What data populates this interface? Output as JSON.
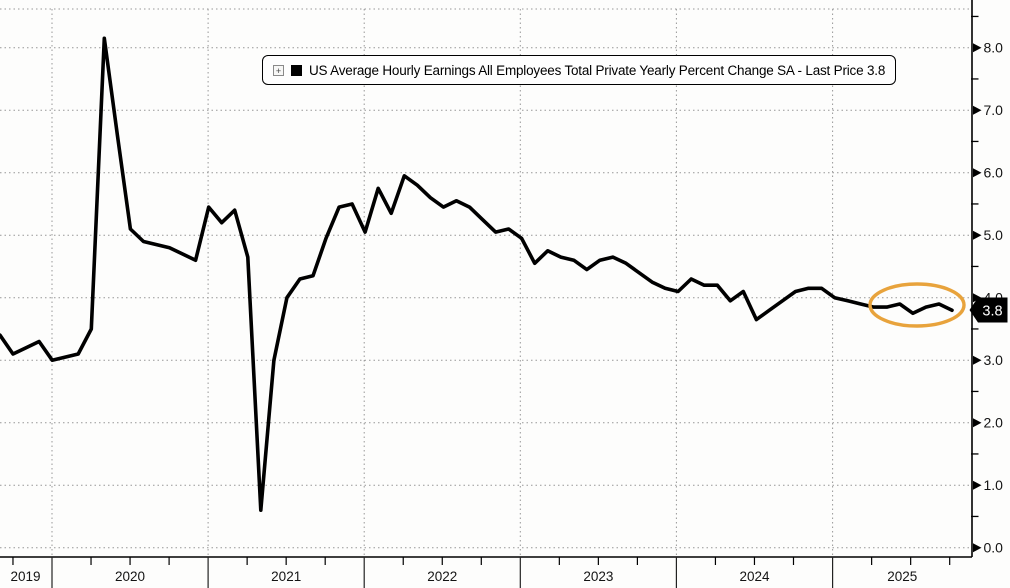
{
  "chart": {
    "legend": {
      "expand_glyph": "+",
      "swatch_color": "#000000",
      "label": "US Average Hourly Earnings All Employees Total Private Yearly Percent Change SA - Last Price 3.8"
    },
    "axis_tag": {
      "value": "3.8",
      "bg_color": "#000000",
      "text_color": "#ffffff"
    },
    "highlight": {
      "shape": "ellipse",
      "color": "#e8a33c"
    }
  },
  "chart_data": {
    "type": "line",
    "title": "US Average Hourly Earnings All Employees Total Private Yearly Percent Change SA",
    "series_name": "US Average Hourly Earnings All Employees Total Private Yearly Percent Change SA",
    "last_price": 3.8,
    "frequency": "monthly",
    "x_start": "2019-08",
    "x_end": "2025-09",
    "values": [
      3.4,
      3.1,
      3.2,
      3.3,
      3.0,
      3.05,
      3.1,
      3.5,
      8.15,
      6.6,
      5.1,
      4.9,
      4.85,
      4.8,
      4.7,
      4.6,
      5.45,
      5.2,
      5.4,
      4.65,
      0.6,
      3.0,
      4.0,
      4.3,
      4.35,
      4.95,
      5.45,
      5.5,
      5.05,
      5.75,
      5.35,
      5.95,
      5.8,
      5.6,
      5.45,
      5.55,
      5.45,
      5.25,
      5.05,
      5.1,
      4.95,
      4.55,
      4.75,
      4.65,
      4.6,
      4.45,
      4.6,
      4.65,
      4.55,
      4.4,
      4.25,
      4.15,
      4.1,
      4.3,
      4.2,
      4.2,
      3.95,
      4.1,
      3.65,
      3.8,
      3.95,
      4.1,
      4.15,
      4.15,
      4.0,
      3.95,
      3.9,
      3.85,
      3.85,
      3.9,
      3.75,
      3.85,
      3.9,
      3.8
    ],
    "x_tick_labels": [
      "2019",
      "2020",
      "2021",
      "2022",
      "2023",
      "2024",
      "2025"
    ],
    "y_ticks": [
      "8.0",
      "7.0",
      "6.0",
      "5.0",
      "4.0",
      "3.0",
      "2.0",
      "1.0",
      "0.0"
    ],
    "y_tick_values": [
      8,
      7,
      6,
      5,
      4,
      3,
      2,
      1,
      0
    ],
    "ylim": [
      0,
      8.6
    ],
    "grid": "dotted",
    "legend_position": "top",
    "line_color": "#000000",
    "annotations": [
      {
        "type": "ellipse_highlight",
        "color": "#e8a33c",
        "covers": "last 8 points"
      },
      {
        "type": "axis_price_tag",
        "value": 3.8
      }
    ]
  }
}
